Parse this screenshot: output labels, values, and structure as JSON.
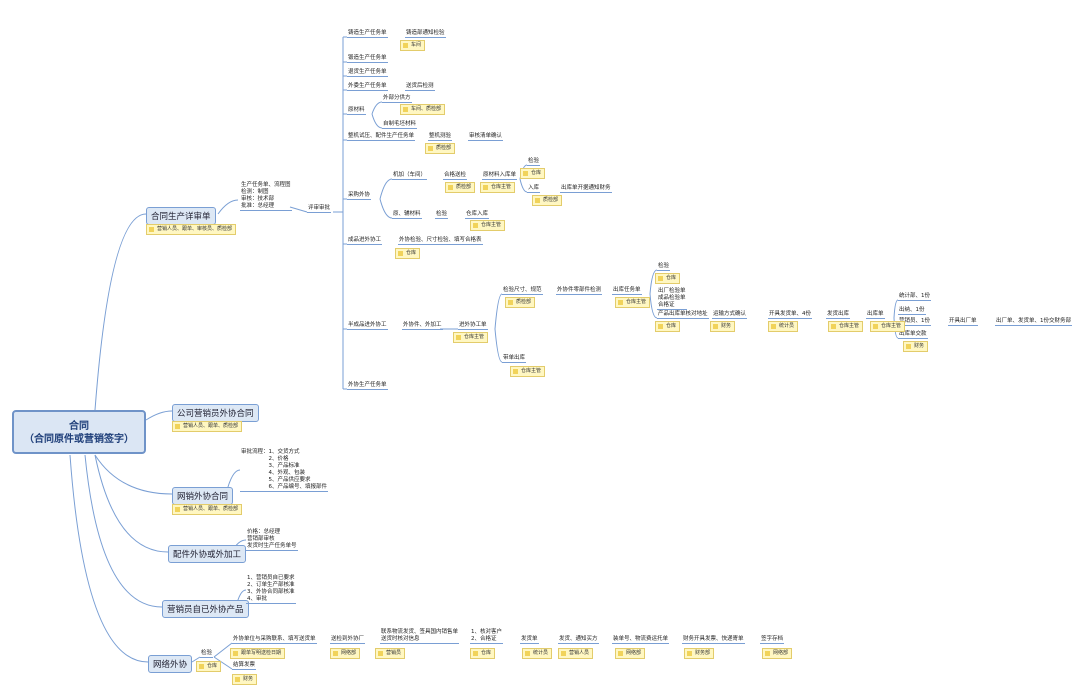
{
  "root": {
    "title": "合同",
    "subtitle": "（合同原件或营销签字）"
  },
  "branches": [
    "合同生产详审单",
    "公司营销员外协合同",
    "网销外协合同",
    "配件外协或外加工",
    "营销员自已外协产品",
    "网络外协"
  ],
  "topics": [
    "铸造生产任务单",
    "铸造部通知检验",
    "锻造生产任务单",
    "退货生产任务单",
    "外委生产任务单",
    "送货后检测",
    "原材料",
    "外部分供方",
    "自制毛坯材料",
    "整机试压、配件生产任务单",
    "整机测验",
    "审核清单确认",
    "采购外协",
    "机加（车间）",
    "合格送检",
    "原材料入库单",
    "检验",
    "入库",
    "出库单开据通知财务",
    "原、辅材料",
    "检验",
    "仓库入库",
    "成品进外协工",
    "外协检验、尺寸检验、填写合格表",
    "半成品进外协工",
    "外协件、外加工",
    "进外协工单",
    "检验尺寸、规范",
    "外协件零部件检测",
    "出库任务单",
    "检验",
    "出厂检验单\n成品检验单\n合格证",
    "产品出库单核对地址",
    "运输方式确认",
    "开具发货单、4份",
    "发货出库",
    "出库单",
    "统计部、1份",
    "出纳、1份",
    "营销员、1份",
    "开具出厂单",
    "出厂单、发货单、1份交财务部",
    "出库单交款",
    "带单出库",
    "外协生产任务单",
    "生产任务单、流程图\n检测：制图\n审核：技术部\n批准：总经理",
    "评审审批",
    "审批流程：1、交货方式\n　　　　　2、价格\n　　　　　3、产品标准\n　　　　　4、外观、包装\n　　　　　5、产品供应要求\n　　　　　6、产品编号、填报部件",
    "价格：总经理\n营销部审核\n发货时生产任务单号",
    "1、营销员自已要求\n2、订单生产部核准\n3、外协合同部核准\n4、审批",
    "检验",
    "外协单位与采购联系、填写送货单",
    "送检到外协厂",
    "联系物流发货、签具国内销售单\n送货时核对信息",
    "1、核对客户\n2、合格证",
    "发货单",
    "发货、通知买方",
    "装单号、物流费运托单",
    "财务开具发票、快递寄单",
    "签字存档",
    "结算发票"
  ],
  "notes": [
    "车间",
    "车间、质检部",
    "质检部",
    "质检部",
    "仓库主管",
    "仓库",
    "质检部",
    "仓库主管",
    "仓库",
    "仓库主管",
    "质检部",
    "仓库主管",
    "仓库",
    "仓库",
    "财务",
    "统计员",
    "仓库主管",
    "仓库主管",
    "财务",
    "仓库主管",
    "营销人员、跟单、审核员、质检部",
    "营销人员、跟单、质检部",
    "营销人员、跟单、质检部",
    "仓库",
    "跟单写明送检日期",
    "网络部",
    "营销员",
    "仓库",
    "统计员",
    "营销人员",
    "网络部",
    "财务部",
    "网络部",
    "财务"
  ]
}
